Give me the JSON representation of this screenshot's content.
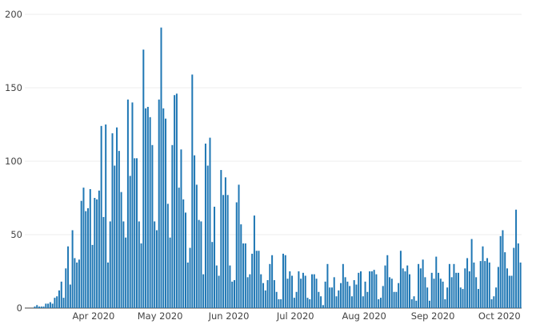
{
  "chart_data": {
    "type": "bar",
    "title": "",
    "xlabel": "",
    "ylabel": "",
    "x_start": "2020-03-01",
    "ylim": [
      0,
      200
    ],
    "y_ticks": [
      0,
      50,
      100,
      150,
      200
    ],
    "x_ticks": [
      {
        "date": "2020-04-01",
        "label": "Apr 2020"
      },
      {
        "date": "2020-05-01",
        "label": "May 2020"
      },
      {
        "date": "2020-06-01",
        "label": "Jun 2020"
      },
      {
        "date": "2020-07-01",
        "label": "Jul 2020"
      },
      {
        "date": "2020-08-01",
        "label": "Aug 2020"
      },
      {
        "date": "2020-09-01",
        "label": "Sep 2020"
      },
      {
        "date": "2020-10-01",
        "label": "Oct 2020"
      }
    ],
    "grid": true,
    "bar_color": "#1f77b4",
    "series": [
      {
        "values": [
          0,
          0,
          0,
          0,
          1,
          2,
          1,
          1,
          1,
          3,
          3,
          4,
          3,
          7,
          8,
          12,
          18,
          7,
          27,
          42,
          16,
          53,
          34,
          31,
          33,
          73,
          82,
          66,
          68,
          81,
          43,
          75,
          74,
          80,
          124,
          62,
          125,
          31,
          59,
          119,
          97,
          123,
          107,
          79,
          59,
          48,
          142,
          90,
          140,
          102,
          102,
          59,
          44,
          176,
          136,
          137,
          130,
          111,
          59,
          53,
          142,
          191,
          136,
          129,
          71,
          48,
          111,
          145,
          146,
          82,
          108,
          74,
          65,
          31,
          41,
          159,
          104,
          84,
          60,
          59,
          23,
          112,
          97,
          116,
          45,
          69,
          29,
          22,
          94,
          77,
          89,
          77,
          29,
          18,
          19,
          72,
          84,
          57,
          44,
          44,
          21,
          23,
          37,
          63,
          39,
          39,
          23,
          17,
          12,
          19,
          30,
          36,
          19,
          11,
          6,
          6,
          37,
          36,
          20,
          25,
          22,
          7,
          11,
          25,
          20,
          24,
          22,
          7,
          6,
          23,
          23,
          20,
          11,
          8,
          2,
          18,
          30,
          14,
          14,
          21,
          8,
          12,
          17,
          30,
          21,
          18,
          15,
          8,
          19,
          16,
          24,
          25,
          8,
          18,
          11,
          25,
          25,
          26,
          23,
          6,
          7,
          15,
          29,
          36,
          21,
          20,
          11,
          11,
          17,
          39,
          27,
          25,
          29,
          23,
          6,
          8,
          5,
          30,
          27,
          33,
          21,
          14,
          5,
          24,
          20,
          35,
          24,
          20,
          18,
          6,
          14,
          30,
          21,
          30,
          24,
          24,
          14,
          13,
          27,
          34,
          25,
          47,
          31,
          21,
          13,
          32,
          42,
          32,
          34,
          31,
          6,
          8,
          14,
          28,
          49,
          53,
          38,
          27,
          22,
          22,
          41,
          67,
          44,
          31
        ]
      }
    ]
  }
}
